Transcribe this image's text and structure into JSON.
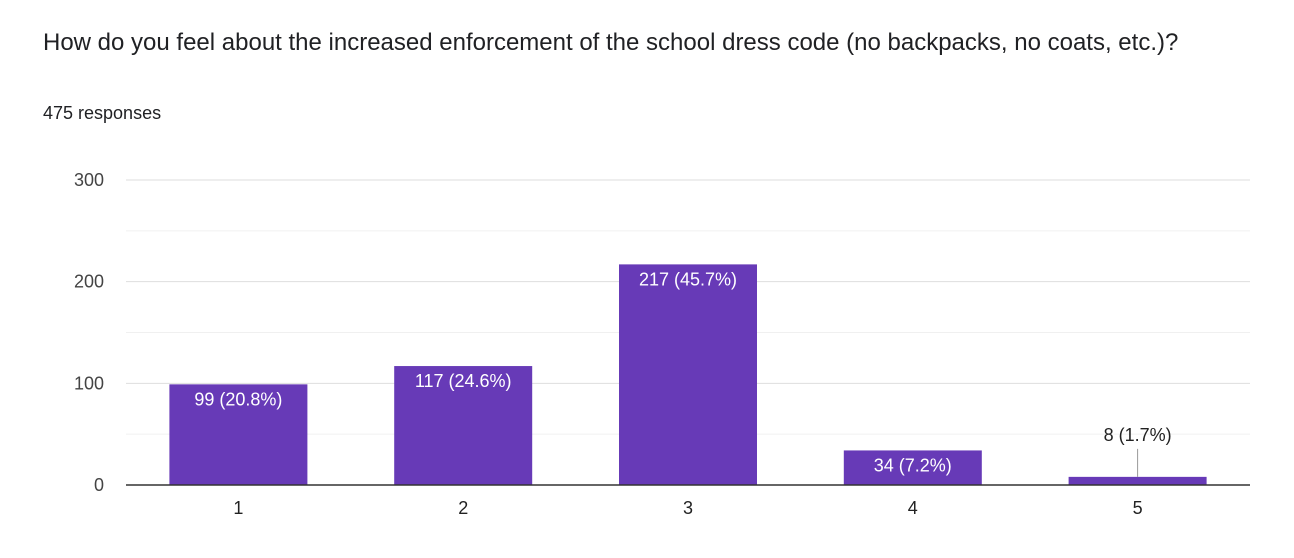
{
  "question": "How do you feel about the increased enforcement of the school dress code (no backpacks, no coats, etc.)?",
  "responses_text": "475 responses",
  "colors": {
    "bar": "#673ab7",
    "grid": "#e6e6e6",
    "axis": "#333333"
  },
  "chart_data": {
    "type": "bar",
    "title": "How do you feel about the increased enforcement of the school dress code (no backpacks, no coats, etc.)?",
    "xlabel": "",
    "ylabel": "",
    "categories": [
      "1",
      "2",
      "3",
      "4",
      "5"
    ],
    "values": [
      99,
      117,
      217,
      34,
      8
    ],
    "labels": [
      "99 (20.8%)",
      "117 (24.6%)",
      "217 (45.7%)",
      "34 (7.2%)",
      "8 (1.7%)"
    ],
    "ylim": [
      0,
      300
    ],
    "yticks": [
      0,
      100,
      200,
      300
    ],
    "grid": true
  }
}
